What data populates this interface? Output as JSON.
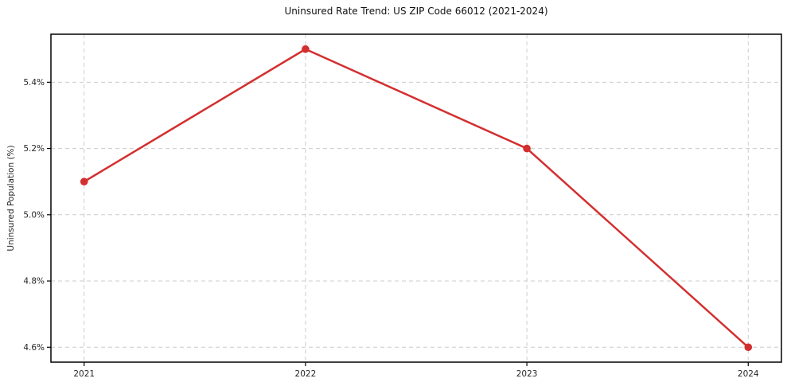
{
  "chart_data": {
    "type": "line",
    "title": "Uninsured Rate Trend: US ZIP Code 66012 (2021-2024)",
    "xlabel": "",
    "ylabel": "Uninsured Population (%)",
    "x": [
      2021,
      2022,
      2023,
      2024
    ],
    "categories": [
      "2021",
      "2022",
      "2023",
      "2024"
    ],
    "values": [
      5.1,
      5.5,
      5.2,
      4.6
    ],
    "yticks": [
      4.6,
      4.8,
      5.0,
      5.2,
      5.4
    ],
    "ytick_labels": [
      "4.6%",
      "4.8%",
      "5.0%",
      "5.2%",
      "5.4%"
    ],
    "ylim": [
      4.555,
      5.545
    ],
    "xlim": [
      2020.85,
      2024.15
    ],
    "grid": true,
    "grid_style": "dashed",
    "grid_color": "#cccccc",
    "legend": "none",
    "marker": "circle",
    "line_color": "#d32f2f",
    "axis_color": "#000000",
    "background": "#ffffff"
  }
}
